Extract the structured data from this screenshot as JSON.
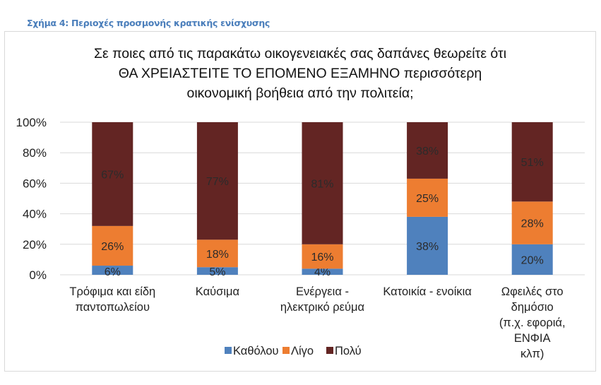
{
  "caption": "Σχήμα 4: Περιοχές προσμονής κρατικής ενίσχυσης",
  "chart_data": {
    "type": "bar",
    "stacked": true,
    "title_lines": [
      "Σε ποιες από τις παρακάτω οικογενειακές σας δαπάνες θεωρείτε ότι",
      "ΘΑ ΧΡΕΙΑΣΤΕΙΤΕ ΤΟ ΕΠΟΜΕΝΟ ΕΞΑΜΗΝΟ  περισσότερη",
      "οικονομική βοήθεια από την πολιτεία;"
    ],
    "categories": [
      [
        "Τρόφιμα και είδη",
        "παντοπωλείου"
      ],
      [
        "Καύσιμα"
      ],
      [
        "Ενέργεια -",
        "ηλεκτρικό ρεύμα"
      ],
      [
        "Κατοικία - ενοίκια"
      ],
      [
        "Ωφειλές στο",
        "δημόσιο",
        "(π.χ. εφοριά,",
        "ΕΝΦΙΑ",
        "κλπ)"
      ]
    ],
    "series": [
      {
        "name": "Καθόλου",
        "color": "#4f81bd",
        "values": [
          6,
          5,
          4,
          38,
          20
        ]
      },
      {
        "name": "Λίγο",
        "color": "#ed7d31",
        "values": [
          26,
          18,
          16,
          25,
          28
        ]
      },
      {
        "name": "Πολύ",
        "color": "#632523",
        "values": [
          67,
          77,
          81,
          38,
          51
        ]
      }
    ],
    "ylim": [
      0,
      100
    ],
    "yticks": [
      "0%",
      "20%",
      "40%",
      "60%",
      "80%",
      "100%"
    ],
    "grid": true,
    "legend": "bottom"
  }
}
